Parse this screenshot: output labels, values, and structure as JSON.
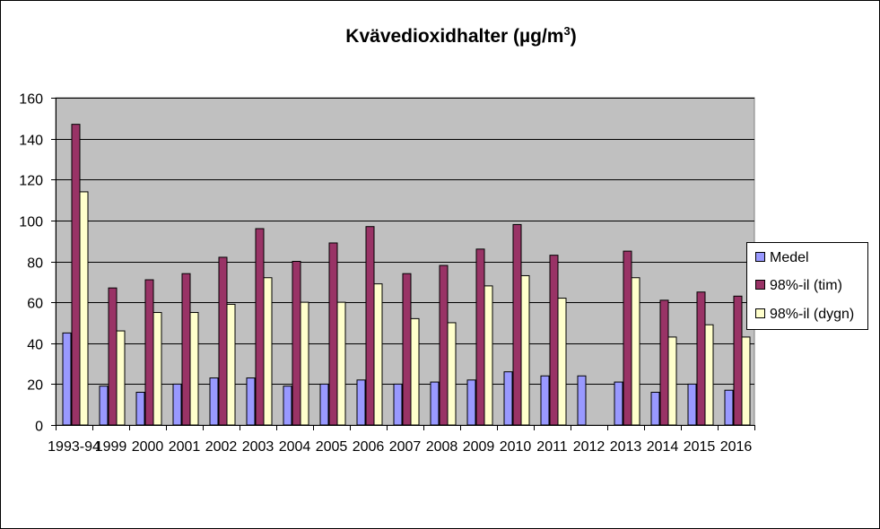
{
  "chart_data": {
    "type": "bar",
    "title": "Kvävedioxidhalter (µg/m",
    "title_superscript": "3",
    "title_suffix": ")",
    "categories": [
      "1993-94",
      "1999",
      "2000",
      "2001",
      "2002",
      "2003",
      "2004",
      "2005",
      "2006",
      "2007",
      "2008",
      "2009",
      "2010",
      "2011",
      "2012",
      "2013",
      "2014",
      "2015",
      "2016"
    ],
    "series": [
      {
        "name": "Medel",
        "color": "#9999ff",
        "values": [
          45,
          19,
          16,
          20,
          23,
          23,
          19,
          20,
          22,
          20,
          21,
          22,
          26,
          24,
          24,
          21,
          16,
          20,
          17
        ]
      },
      {
        "name": "98%-il (tim)",
        "color": "#993366",
        "values": [
          147,
          67,
          71,
          74,
          82,
          96,
          80,
          89,
          97,
          74,
          78,
          86,
          98,
          83,
          null,
          85,
          61,
          65,
          63
        ]
      },
      {
        "name": "98%-il (dygn)",
        "color": "#ffffcc",
        "values": [
          114,
          46,
          55,
          55,
          59,
          72,
          60,
          60,
          69,
          52,
          50,
          68,
          73,
          62,
          null,
          72,
          43,
          49,
          43
        ]
      }
    ],
    "ylim": [
      0,
      160
    ],
    "yticks": [
      0,
      20,
      40,
      60,
      80,
      100,
      120,
      140,
      160
    ],
    "grid": true,
    "legend_position": "right",
    "plot_background": "#c0c0c0"
  }
}
